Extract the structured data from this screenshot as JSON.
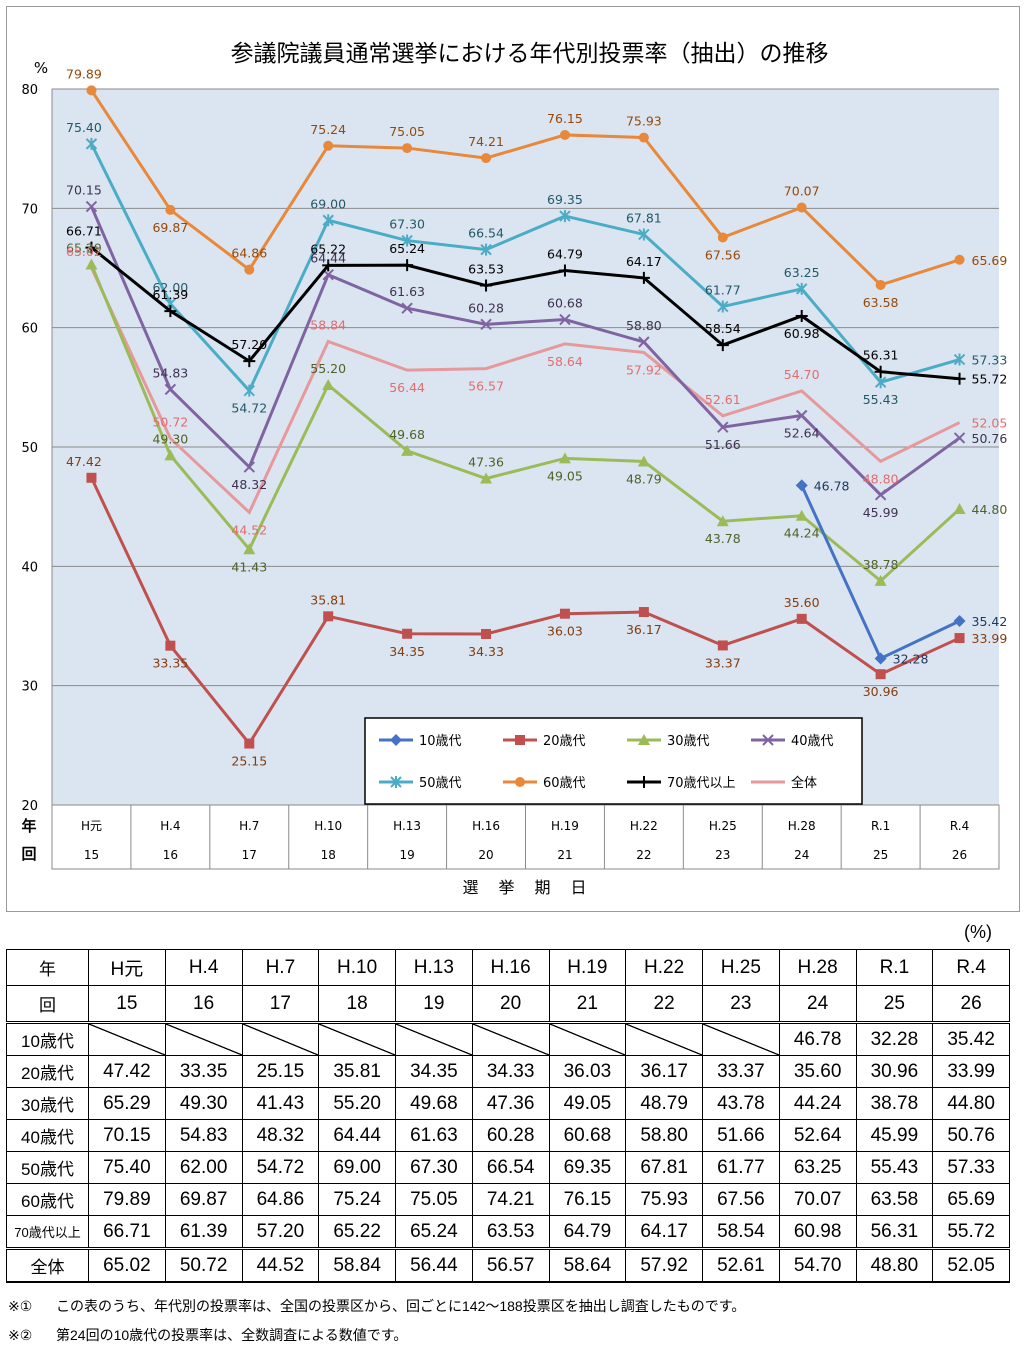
{
  "chart_data": {
    "type": "line",
    "title": "参議院議員通常選挙における年代別投票率（抽出）の推移",
    "ylabel": "%",
    "xlabel": "選　挙　期　日",
    "ylim": [
      20,
      80
    ],
    "yticks": [
      20,
      30,
      40,
      50,
      60,
      70,
      80
    ],
    "row_label_year": "年",
    "row_label_round": "回",
    "categories": [
      "H元",
      "H.4",
      "H.7",
      "H.10",
      "H.13",
      "H.16",
      "H.19",
      "H.22",
      "H.25",
      "H.28",
      "R.1",
      "R.4"
    ],
    "rounds": [
      "15",
      "16",
      "17",
      "18",
      "19",
      "20",
      "21",
      "22",
      "23",
      "24",
      "25",
      "26"
    ],
    "series": [
      {
        "name": "10歳代",
        "color": "#4472C4",
        "label_color": "#1F3864",
        "marker": "diamond",
        "values": [
          null,
          null,
          null,
          null,
          null,
          null,
          null,
          null,
          null,
          46.78,
          32.28,
          35.42
        ]
      },
      {
        "name": "20歳代",
        "color": "#C0504D",
        "label_color": "#843C0C",
        "marker": "square",
        "values": [
          47.42,
          33.35,
          25.15,
          35.81,
          34.35,
          34.33,
          36.03,
          36.17,
          33.37,
          35.6,
          30.96,
          33.99
        ]
      },
      {
        "name": "30歳代",
        "color": "#9BBB59",
        "label_color": "#4F6228",
        "marker": "triangle",
        "values": [
          65.29,
          49.3,
          41.43,
          55.2,
          49.68,
          47.36,
          49.05,
          48.79,
          43.78,
          44.24,
          38.78,
          44.8
        ]
      },
      {
        "name": "40歳代",
        "color": "#8064A2",
        "label_color": "#3F3151",
        "marker": "x",
        "values": [
          70.15,
          54.83,
          48.32,
          64.44,
          61.63,
          60.28,
          60.68,
          58.8,
          51.66,
          52.64,
          45.99,
          50.76
        ]
      },
      {
        "name": "50歳代",
        "color": "#4BACC6",
        "label_color": "#215968",
        "marker": "star",
        "values": [
          75.4,
          62.0,
          54.72,
          69.0,
          67.3,
          66.54,
          69.35,
          67.81,
          61.77,
          63.25,
          55.43,
          57.33
        ]
      },
      {
        "name": "60歳代",
        "color": "#E8883A",
        "label_color": "#974806",
        "marker": "circle",
        "values": [
          79.89,
          69.87,
          64.86,
          75.24,
          75.05,
          74.21,
          76.15,
          75.93,
          67.56,
          70.07,
          63.58,
          65.69
        ]
      },
      {
        "name": "70歳代以上",
        "color": "#000000",
        "label_color": "#000000",
        "marker": "plus",
        "values": [
          66.71,
          61.39,
          57.2,
          65.22,
          65.24,
          63.53,
          64.79,
          64.17,
          58.54,
          60.98,
          56.31,
          55.72
        ]
      },
      {
        "name": "全体",
        "color": "#E6999A",
        "label_color": "#E46C6C",
        "marker": "none",
        "values": [
          65.02,
          50.72,
          44.52,
          58.84,
          56.44,
          56.57,
          58.64,
          57.92,
          52.61,
          54.7,
          48.8,
          52.05
        ]
      }
    ],
    "legend_placement": "bottom-right"
  },
  "table": {
    "unit": "(%)",
    "header_year_label": "年",
    "header_round_label": "回",
    "years": [
      "H元",
      "H.4",
      "H.7",
      "H.10",
      "H.13",
      "H.16",
      "H.19",
      "H.22",
      "H.25",
      "H.28",
      "R.1",
      "R.4"
    ],
    "rounds": [
      "15",
      "16",
      "17",
      "18",
      "19",
      "20",
      "21",
      "22",
      "23",
      "24",
      "25",
      "26"
    ],
    "rows": [
      {
        "label": "10歳代",
        "cells": [
          "",
          "",
          "",
          "",
          "",
          "",
          "",
          "",
          "",
          "46.78",
          "32.28",
          "35.42"
        ]
      },
      {
        "label": "20歳代",
        "cells": [
          "47.42",
          "33.35",
          "25.15",
          "35.81",
          "34.35",
          "34.33",
          "36.03",
          "36.17",
          "33.37",
          "35.60",
          "30.96",
          "33.99"
        ]
      },
      {
        "label": "30歳代",
        "cells": [
          "65.29",
          "49.30",
          "41.43",
          "55.20",
          "49.68",
          "47.36",
          "49.05",
          "48.79",
          "43.78",
          "44.24",
          "38.78",
          "44.80"
        ]
      },
      {
        "label": "40歳代",
        "cells": [
          "70.15",
          "54.83",
          "48.32",
          "64.44",
          "61.63",
          "60.28",
          "60.68",
          "58.80",
          "51.66",
          "52.64",
          "45.99",
          "50.76"
        ]
      },
      {
        "label": "50歳代",
        "cells": [
          "75.40",
          "62.00",
          "54.72",
          "69.00",
          "67.30",
          "66.54",
          "69.35",
          "67.81",
          "61.77",
          "63.25",
          "55.43",
          "57.33"
        ]
      },
      {
        "label": "60歳代",
        "cells": [
          "79.89",
          "69.87",
          "64.86",
          "75.24",
          "75.05",
          "74.21",
          "76.15",
          "75.93",
          "67.56",
          "70.07",
          "63.58",
          "65.69"
        ]
      },
      {
        "label": "70歳代以上",
        "cells": [
          "66.71",
          "61.39",
          "57.20",
          "65.22",
          "65.24",
          "63.53",
          "64.79",
          "64.17",
          "58.54",
          "60.98",
          "56.31",
          "55.72"
        ]
      },
      {
        "label": "全体",
        "cells": [
          "65.02",
          "50.72",
          "44.52",
          "58.84",
          "56.44",
          "56.57",
          "58.64",
          "57.92",
          "52.61",
          "54.70",
          "48.80",
          "52.05"
        ]
      }
    ]
  },
  "notes": [
    {
      "mark": "※①",
      "text": "この表のうち、年代別の投票率は、全国の投票区から、回ごとに142～188投票区を抽出し調査したものです。"
    },
    {
      "mark": "※②",
      "text": "第24回の10歳代の投票率は、全数調査による数値です。"
    }
  ]
}
